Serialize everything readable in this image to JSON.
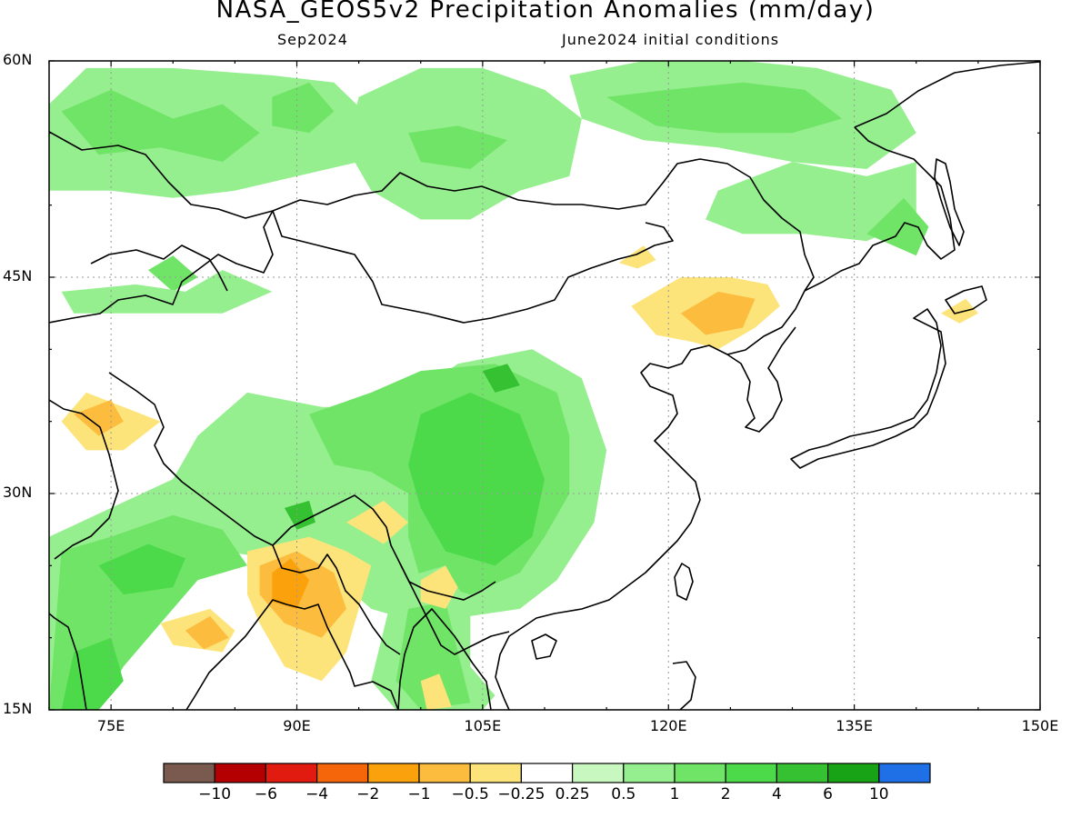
{
  "header": {
    "title": "NASA_GEOS5v2 Precipitation Anomalies (mm/day)",
    "valid_month": "Sep2024",
    "init_conditions": "June2024 initial conditions"
  },
  "map": {
    "lon_range": [
      70,
      150
    ],
    "lat_range": [
      15,
      60
    ],
    "lat_ticks": [
      {
        "value": 60,
        "label": "60N"
      },
      {
        "value": 45,
        "label": "45N"
      },
      {
        "value": 30,
        "label": "30N"
      },
      {
        "value": 15,
        "label": "15N"
      }
    ],
    "lon_ticks": [
      {
        "value": 75,
        "label": "75E"
      },
      {
        "value": 90,
        "label": "90E"
      },
      {
        "value": 105,
        "label": "105E"
      },
      {
        "value": 120,
        "label": "120E"
      },
      {
        "value": 135,
        "label": "135E"
      },
      {
        "value": 150,
        "label": "150E"
      }
    ],
    "gridlines": true,
    "coastline_color": "#000000"
  },
  "colorbar": {
    "colors": [
      "#7a5a4e",
      "#b40000",
      "#e11b0f",
      "#f5650a",
      "#fba10c",
      "#fcbc3e",
      "#fde47a",
      "#ffffff",
      "#c8f8bf",
      "#96ef8e",
      "#6fe466",
      "#4cd94a",
      "#35c132",
      "#18a317",
      "#1f6fe6"
    ],
    "labels": [
      "−10",
      "−6",
      "−4",
      "−2",
      "−1",
      "−0.5",
      "−0.25",
      "0.25",
      "0.5",
      "1",
      "2",
      "4",
      "6",
      "10"
    ]
  },
  "chart_data": {
    "type": "heatmap",
    "title": "NASA_GEOS5v2 Precipitation Anomalies (mm/day)",
    "subtitle": "Sep2024",
    "xlim": [
      70,
      150
    ],
    "ylim": [
      15,
      60
    ],
    "regions": [
      {
        "anomaly": 0.5,
        "poly": [
          [
            70,
            57
          ],
          [
            73,
            59.5
          ],
          [
            80,
            59.5
          ],
          [
            88,
            59
          ],
          [
            93,
            58.5
          ],
          [
            96,
            56
          ],
          [
            95,
            53
          ],
          [
            90,
            52
          ],
          [
            85,
            51
          ],
          [
            80,
            50.5
          ],
          [
            75,
            51
          ],
          [
            70,
            51
          ]
        ]
      },
      {
        "anomaly": 0.5,
        "poly": [
          [
            95,
            57.5
          ],
          [
            100,
            59.5
          ],
          [
            105,
            59.5
          ],
          [
            110,
            58
          ],
          [
            113,
            56
          ],
          [
            112,
            52
          ],
          [
            108,
            51
          ],
          [
            104,
            49
          ],
          [
            100,
            49
          ],
          [
            96,
            51
          ],
          [
            94,
            54
          ]
        ]
      },
      {
        "anomaly": 0.5,
        "poly": [
          [
            112,
            59
          ],
          [
            118,
            60
          ],
          [
            126,
            60
          ],
          [
            132,
            59.5
          ],
          [
            138,
            58
          ],
          [
            140,
            55
          ],
          [
            136,
            52.5
          ],
          [
            130,
            53
          ],
          [
            124,
            54
          ],
          [
            118,
            54.5
          ],
          [
            113,
            56
          ]
        ]
      },
      {
        "anomaly": 0.5,
        "poly": [
          [
            124,
            51
          ],
          [
            130,
            53
          ],
          [
            136,
            52
          ],
          [
            140,
            53
          ],
          [
            140,
            49
          ],
          [
            136,
            47.5
          ],
          [
            131,
            48
          ],
          [
            126,
            48
          ],
          [
            123,
            49
          ]
        ]
      },
      {
        "anomaly": 1,
        "poly": [
          [
            71,
            56.5
          ],
          [
            75,
            58
          ],
          [
            80,
            56
          ],
          [
            84,
            57
          ],
          [
            87,
            55
          ],
          [
            84,
            53
          ],
          [
            79,
            54
          ],
          [
            74,
            53.5
          ]
        ]
      },
      {
        "anomaly": 1,
        "poly": [
          [
            88,
            57.5
          ],
          [
            91,
            58.5
          ],
          [
            93,
            56.5
          ],
          [
            91,
            55
          ],
          [
            88,
            55.5
          ]
        ]
      },
      {
        "anomaly": 1,
        "poly": [
          [
            115,
            57.5
          ],
          [
            120,
            58
          ],
          [
            126,
            58.5
          ],
          [
            131,
            58
          ],
          [
            134,
            56
          ],
          [
            130,
            55
          ],
          [
            124,
            55
          ],
          [
            119,
            55.5
          ]
        ]
      },
      {
        "anomaly": 1,
        "poly": [
          [
            99,
            55
          ],
          [
            103,
            55.5
          ],
          [
            107,
            54.5
          ],
          [
            104,
            52.5
          ],
          [
            100,
            53
          ]
        ]
      },
      {
        "anomaly": 1,
        "poly": [
          [
            78,
            45.5
          ],
          [
            80,
            46.5
          ],
          [
            82,
            45
          ],
          [
            80,
            44
          ]
        ]
      },
      {
        "anomaly": 1,
        "poly": [
          [
            136,
            48
          ],
          [
            139,
            50.5
          ],
          [
            141,
            48.5
          ],
          [
            140,
            46.5
          ]
        ]
      },
      {
        "anomaly": 0.5,
        "poly": [
          [
            71,
            44
          ],
          [
            77,
            44.5
          ],
          [
            81,
            44
          ],
          [
            84,
            45.5
          ],
          [
            88,
            44
          ],
          [
            84,
            42.5
          ],
          [
            78,
            42.5
          ],
          [
            72,
            42.5
          ]
        ]
      },
      {
        "anomaly": 0.5,
        "poly": [
          [
            70,
            27
          ],
          [
            75,
            29
          ],
          [
            80,
            31
          ],
          [
            82,
            34
          ],
          [
            86,
            37
          ],
          [
            92,
            36
          ],
          [
            98,
            36
          ],
          [
            103,
            39
          ],
          [
            109,
            40
          ],
          [
            113,
            38
          ],
          [
            115,
            33
          ],
          [
            114,
            28
          ],
          [
            111,
            24
          ],
          [
            108,
            22
          ],
          [
            104,
            21.5
          ],
          [
            100,
            21
          ],
          [
            96,
            22
          ],
          [
            92,
            25
          ],
          [
            88,
            25.5
          ],
          [
            84,
            26
          ],
          [
            80,
            24
          ],
          [
            76,
            21
          ],
          [
            74,
            18
          ],
          [
            73,
            15
          ],
          [
            70,
            15
          ]
        ]
      },
      {
        "anomaly": 1,
        "poly": [
          [
            91,
            35.5
          ],
          [
            96,
            37
          ],
          [
            100,
            38.5
          ],
          [
            106,
            39
          ],
          [
            111,
            37
          ],
          [
            112,
            34
          ],
          [
            112,
            30
          ],
          [
            110,
            27
          ],
          [
            108,
            24.5
          ],
          [
            104,
            23
          ],
          [
            100,
            24
          ],
          [
            99,
            27
          ],
          [
            99,
            30
          ],
          [
            96,
            31.5
          ],
          [
            93,
            32
          ]
        ]
      },
      {
        "anomaly": 1,
        "poly": [
          [
            71,
            26
          ],
          [
            75,
            27
          ],
          [
            80,
            28.5
          ],
          [
            84,
            27.5
          ],
          [
            86,
            25
          ],
          [
            82,
            24
          ],
          [
            79,
            21
          ],
          [
            76,
            18
          ],
          [
            74,
            15
          ],
          [
            70,
            15
          ]
        ]
      },
      {
        "anomaly": 2,
        "poly": [
          [
            100,
            35.5
          ],
          [
            104,
            37
          ],
          [
            108,
            35.5
          ],
          [
            110,
            31
          ],
          [
            109,
            27
          ],
          [
            106,
            25
          ],
          [
            102,
            26
          ],
          [
            100,
            29
          ],
          [
            99,
            32
          ]
        ]
      },
      {
        "anomaly": 2,
        "poly": [
          [
            74,
            25
          ],
          [
            78,
            26.5
          ],
          [
            81,
            25.5
          ],
          [
            80,
            23.5
          ],
          [
            76,
            23
          ]
        ]
      },
      {
        "anomaly": 2,
        "poly": [
          [
            72,
            19
          ],
          [
            75,
            20
          ],
          [
            76,
            17
          ],
          [
            74,
            15
          ],
          [
            71,
            15
          ]
        ]
      },
      {
        "anomaly": 4,
        "poly": [
          [
            89,
            29
          ],
          [
            91,
            29.5
          ],
          [
            91.5,
            28
          ],
          [
            90,
            27.5
          ]
        ]
      },
      {
        "anomaly": 4,
        "poly": [
          [
            105,
            38.5
          ],
          [
            107,
            39
          ],
          [
            108,
            37.5
          ],
          [
            106,
            37
          ]
        ]
      },
      {
        "anomaly": 0.5,
        "poly": [
          [
            98,
            24
          ],
          [
            102,
            25
          ],
          [
            104,
            22
          ],
          [
            104,
            18
          ],
          [
            106,
            16
          ],
          [
            105,
            15
          ],
          [
            98,
            15
          ],
          [
            96,
            17
          ]
        ]
      },
      {
        "anomaly": 1,
        "poly": [
          [
            99,
            22
          ],
          [
            102,
            22.5
          ],
          [
            103,
            19
          ],
          [
            104,
            15.5
          ],
          [
            100,
            15
          ],
          [
            98,
            17
          ]
        ]
      },
      {
        "anomaly": -0.5,
        "poly": [
          [
            71,
            35
          ],
          [
            73,
            37
          ],
          [
            76,
            36
          ],
          [
            79,
            35
          ],
          [
            76,
            33
          ],
          [
            73,
            33
          ]
        ]
      },
      {
        "anomaly": -1,
        "poly": [
          [
            72,
            35.5
          ],
          [
            75,
            36.5
          ],
          [
            76,
            35
          ],
          [
            74,
            34
          ]
        ]
      },
      {
        "anomaly": -0.5,
        "poly": [
          [
            86,
            26
          ],
          [
            91,
            27
          ],
          [
            94,
            26
          ],
          [
            96,
            25
          ],
          [
            95,
            22
          ],
          [
            94,
            19
          ],
          [
            92,
            17
          ],
          [
            89,
            18
          ],
          [
            87,
            21
          ],
          [
            86,
            23
          ]
        ]
      },
      {
        "anomaly": -1,
        "poly": [
          [
            87,
            25
          ],
          [
            90,
            26
          ],
          [
            93,
            24.5
          ],
          [
            94,
            22
          ],
          [
            92,
            20
          ],
          [
            89,
            21
          ],
          [
            87,
            23
          ]
        ]
      },
      {
        "anomaly": -2,
        "poly": [
          [
            88,
            24.5
          ],
          [
            89.5,
            25.5
          ],
          [
            91,
            24
          ],
          [
            90,
            22
          ],
          [
            88,
            22.5
          ]
        ]
      },
      {
        "anomaly": -0.5,
        "poly": [
          [
            100,
            24
          ],
          [
            102,
            25
          ],
          [
            103,
            23.5
          ],
          [
            102,
            22
          ],
          [
            100,
            22.5
          ]
        ]
      },
      {
        "anomaly": -0.5,
        "poly": [
          [
            94,
            28
          ],
          [
            97,
            29.5
          ],
          [
            99,
            28
          ],
          [
            97,
            26.5
          ]
        ]
      },
      {
        "anomaly": -0.5,
        "poly": [
          [
            79,
            21
          ],
          [
            83,
            22
          ],
          [
            85,
            20.5
          ],
          [
            84,
            19
          ],
          [
            80,
            19.5
          ]
        ]
      },
      {
        "anomaly": -1,
        "poly": [
          [
            81,
            20.5
          ],
          [
            83,
            21.5
          ],
          [
            84.5,
            20
          ],
          [
            82.5,
            19.2
          ]
        ]
      },
      {
        "anomaly": -0.5,
        "poly": [
          [
            100,
            17
          ],
          [
            101.5,
            17.5
          ],
          [
            102.5,
            15.2
          ],
          [
            100.5,
            15
          ]
        ]
      },
      {
        "anomaly": -0.5,
        "poly": [
          [
            117,
            43
          ],
          [
            121,
            45
          ],
          [
            125,
            45
          ],
          [
            128,
            44.5
          ],
          [
            129,
            43
          ],
          [
            127,
            41.5
          ],
          [
            124,
            40
          ],
          [
            122,
            40.5
          ],
          [
            119,
            41
          ]
        ]
      },
      {
        "anomaly": -1,
        "poly": [
          [
            121,
            42.5
          ],
          [
            124,
            44
          ],
          [
            127,
            43.5
          ],
          [
            126,
            41.5
          ],
          [
            123,
            41
          ]
        ]
      },
      {
        "anomaly": -0.5,
        "poly": [
          [
            142,
            42.5
          ],
          [
            144,
            43.5
          ],
          [
            145,
            42.5
          ],
          [
            143.5,
            41.8
          ]
        ]
      },
      {
        "anomaly": -0.5,
        "poly": [
          [
            116,
            46
          ],
          [
            118,
            47.2
          ],
          [
            119,
            46.2
          ],
          [
            117.5,
            45.6
          ]
        ]
      }
    ]
  }
}
